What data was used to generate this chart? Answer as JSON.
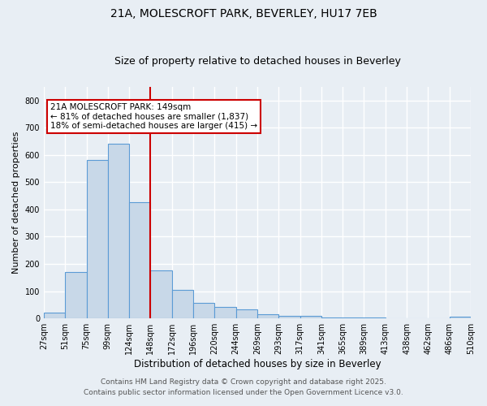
{
  "title1": "21A, MOLESCROFT PARK, BEVERLEY, HU17 7EB",
  "title2": "Size of property relative to detached houses in Beverley",
  "xlabel": "Distribution of detached houses by size in Beverley",
  "ylabel": "Number of detached properties",
  "bin_labels": [
    "27sqm",
    "51sqm",
    "75sqm",
    "99sqm",
    "124sqm",
    "148sqm",
    "172sqm",
    "196sqm",
    "220sqm",
    "244sqm",
    "269sqm",
    "293sqm",
    "317sqm",
    "341sqm",
    "365sqm",
    "389sqm",
    "413sqm",
    "438sqm",
    "462sqm",
    "486sqm",
    "510sqm"
  ],
  "bar_values": [
    20,
    170,
    580,
    640,
    425,
    175,
    105,
    57,
    42,
    32,
    15,
    10,
    10,
    5,
    5,
    3,
    2,
    2,
    0,
    7
  ],
  "bar_color": "#c8d8e8",
  "bar_edge_color": "#5b9bd5",
  "vline_color": "#cc0000",
  "annotation_text": "21A MOLESCROFT PARK: 149sqm\n← 81% of detached houses are smaller (1,837)\n18% of semi-detached houses are larger (415) →",
  "annotation_box_color": "#ffffff",
  "annotation_border_color": "#cc0000",
  "ylim": [
    0,
    850
  ],
  "footnote1": "Contains HM Land Registry data © Crown copyright and database right 2025.",
  "footnote2": "Contains public sector information licensed under the Open Government Licence v3.0.",
  "bg_color": "#e8eef4",
  "grid_color": "#ffffff",
  "title_fontsize": 10,
  "subtitle_fontsize": 9,
  "tick_fontsize": 7,
  "ylabel_fontsize": 8,
  "xlabel_fontsize": 8.5,
  "footnote_fontsize": 6.5
}
